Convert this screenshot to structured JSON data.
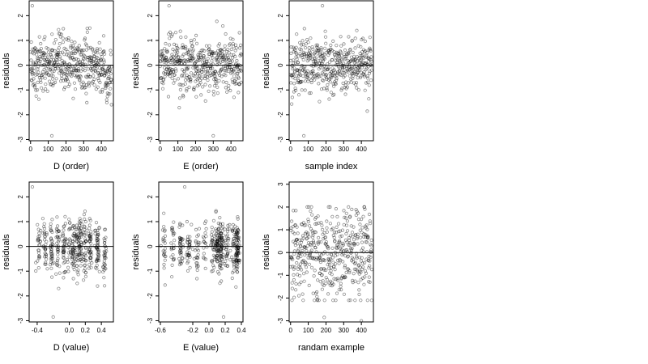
{
  "chart_data": [
    {
      "type": "scatter",
      "xlabel": "D (order)",
      "ylabel": "residuals",
      "xlim": [
        -8,
        468
      ],
      "ylim": [
        -3.05,
        2.6
      ],
      "xticks": [
        0,
        100,
        200,
        300,
        400
      ],
      "yticks": [
        -3,
        -2,
        -1,
        0,
        1,
        2
      ],
      "hline": 0,
      "n": 460,
      "profile": "order_D",
      "outliers": [
        {
          "x": 10,
          "y": 2.4
        },
        {
          "x": 120,
          "y": -2.85
        }
      ]
    },
    {
      "type": "scatter",
      "xlabel": "E (order)",
      "ylabel": "residuals",
      "xlim": [
        -8,
        468
      ],
      "ylim": [
        -3.05,
        2.6
      ],
      "xticks": [
        0,
        100,
        200,
        300,
        400
      ],
      "yticks": [
        -3,
        -2,
        -1,
        0,
        1,
        2
      ],
      "hline": 0,
      "n": 460,
      "profile": "order_E",
      "outliers": [
        {
          "x": 50,
          "y": 2.4
        },
        {
          "x": 300,
          "y": -2.85
        }
      ]
    },
    {
      "type": "scatter",
      "xlabel": "sample index",
      "ylabel": "residuals",
      "xlim": [
        -8,
        468
      ],
      "ylim": [
        -3.05,
        2.6
      ],
      "xticks": [
        0,
        100,
        200,
        300,
        400
      ],
      "yticks": [
        -3,
        -2,
        -1,
        0,
        1,
        2
      ],
      "hline": 0,
      "n": 460,
      "profile": "index",
      "outliers": [
        {
          "x": 180,
          "y": 2.4
        },
        {
          "x": 75,
          "y": -2.85
        }
      ]
    },
    {
      "type": "scatter",
      "xlabel": "D (value)",
      "ylabel": "residuals",
      "xlim": [
        -0.5,
        0.55
      ],
      "ylim": [
        -3.05,
        2.6
      ],
      "xticks": [
        -0.4,
        0.0,
        0.2,
        0.4
      ],
      "xticklabels": [
        "-0.4",
        "0.0",
        "0.2",
        "0.4"
      ],
      "yticks": [
        -3,
        -2,
        -1,
        0,
        1,
        2
      ],
      "hline": 0,
      "n": 460,
      "profile": "value_D",
      "outliers": [
        {
          "x": -0.46,
          "y": 2.4
        },
        {
          "x": -0.2,
          "y": -2.85
        }
      ]
    },
    {
      "type": "scatter",
      "xlabel": "E (value)",
      "ylabel": "residuals",
      "xlim": [
        -0.62,
        0.42
      ],
      "ylim": [
        -3.05,
        2.6
      ],
      "xticks": [
        -0.6,
        -0.2,
        0.0,
        0.2,
        0.4
      ],
      "xticklabels": [
        "-0.6",
        "-0.2",
        "0.0",
        "0.2",
        "0.4"
      ],
      "yticks": [
        -3,
        -2,
        -1,
        0,
        1,
        2
      ],
      "hline": 0,
      "n": 460,
      "profile": "value_E",
      "outliers": [
        {
          "x": -0.3,
          "y": 2.4
        },
        {
          "x": 0.18,
          "y": -2.85
        }
      ]
    },
    {
      "type": "scatter",
      "xlabel": "randam example",
      "ylabel": "residuals",
      "xlim": [
        -8,
        468
      ],
      "ylim": [
        -3.05,
        3.1
      ],
      "xticks": [
        0,
        100,
        200,
        300,
        400
      ],
      "yticks": [
        -3,
        -2,
        -1,
        0,
        1,
        2,
        3
      ],
      "hline": 0,
      "n": 460,
      "profile": "random",
      "outliers": [
        {
          "x": 190,
          "y": -2.85
        },
        {
          "x": 400,
          "y": -3.0
        }
      ]
    }
  ]
}
